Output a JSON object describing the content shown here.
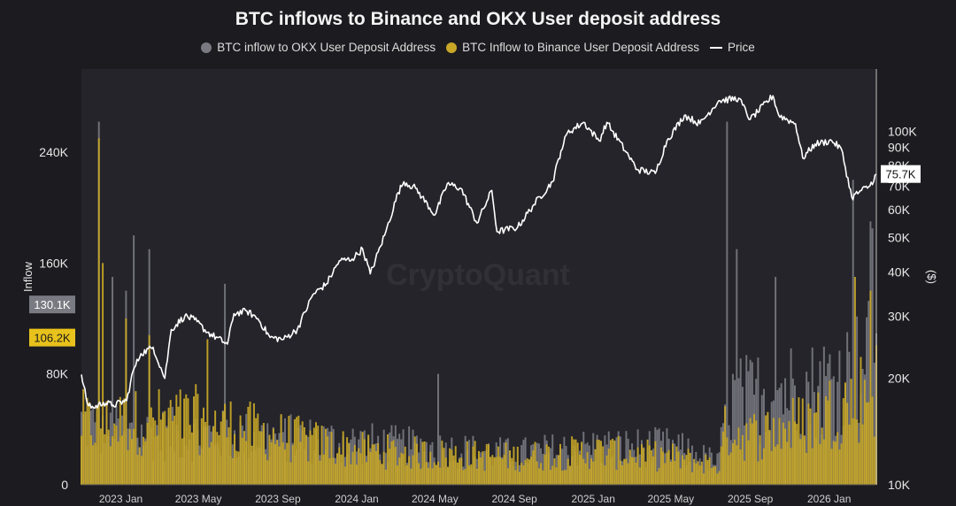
{
  "chart_data": {
    "type": "bar",
    "title": "BTC inflows to Binance and OKX User deposit address",
    "watermark": "CryptoQuant",
    "legend": [
      {
        "name": "BTC inflow to OKX User Deposit Address",
        "color": "#7a7a82",
        "kind": "dot"
      },
      {
        "name": "BTC Inflow to Binance User Deposit Address",
        "color": "#c9a827",
        "kind": "dot"
      },
      {
        "name": "Price",
        "color": "#ffffff",
        "kind": "line"
      }
    ],
    "x_ticks": [
      "2023 Jan",
      "2023 May",
      "2023 Sep",
      "2024 Jan",
      "2024 May",
      "2024 Sep",
      "2025 Jan",
      "2025 May",
      "2025 Sep",
      "2026 Jan"
    ],
    "x_range": [
      "2022-11-01",
      "2026-03-15"
    ],
    "ylabel": "Inflow",
    "ylim": [
      0,
      300000
    ],
    "y_ticks": [
      {
        "v": 0,
        "t": "0"
      },
      {
        "v": 80000,
        "t": "80K"
      },
      {
        "v": 160000,
        "t": "160K"
      },
      {
        "v": 240000,
        "t": "240K"
      }
    ],
    "y2label": "($)",
    "y2_scale": "log",
    "y2lim": [
      10000,
      150000
    ],
    "y2_ticks": [
      {
        "v": 10000,
        "t": "10K"
      },
      {
        "v": 20000,
        "t": "20K"
      },
      {
        "v": 30000,
        "t": "30K"
      },
      {
        "v": 40000,
        "t": "40K"
      },
      {
        "v": 50000,
        "t": "50K"
      },
      {
        "v": 60000,
        "t": "60K"
      },
      {
        "v": 70000,
        "t": "70K"
      },
      {
        "v": 80000,
        "t": "80K"
      },
      {
        "v": 90000,
        "t": "90K"
      },
      {
        "v": 100000,
        "t": "100K"
      }
    ],
    "badges": {
      "okx_last": {
        "text": "130.1K",
        "value": 130100,
        "color": "#7a7a82"
      },
      "binance_last": {
        "text": "106.2K",
        "value": 106200,
        "color": "#e8c21c"
      },
      "price_last": {
        "text": "75.7K",
        "value": 75700,
        "color": "#ffffff"
      }
    },
    "series": [
      {
        "name": "Price",
        "axis": "right",
        "points": [
          [
            "2022-11-01",
            20500
          ],
          [
            "2022-11-10",
            17000
          ],
          [
            "2022-11-20",
            16500
          ],
          [
            "2022-12-05",
            17100
          ],
          [
            "2022-12-20",
            16800
          ],
          [
            "2023-01-10",
            17300
          ],
          [
            "2023-01-20",
            21000
          ],
          [
            "2023-02-01",
            23500
          ],
          [
            "2023-02-20",
            24500
          ],
          [
            "2023-03-10",
            20000
          ],
          [
            "2023-03-20",
            27500
          ],
          [
            "2023-04-10",
            30000
          ],
          [
            "2023-04-25",
            29300
          ],
          [
            "2023-05-15",
            27000
          ],
          [
            "2023-06-15",
            25000
          ],
          [
            "2023-06-25",
            30500
          ],
          [
            "2023-07-15",
            31000
          ],
          [
            "2023-08-01",
            29500
          ],
          [
            "2023-08-20",
            26100
          ],
          [
            "2023-09-10",
            25800
          ],
          [
            "2023-10-01",
            27500
          ],
          [
            "2023-10-25",
            34500
          ],
          [
            "2023-11-15",
            37000
          ],
          [
            "2023-12-05",
            43000
          ],
          [
            "2023-12-25",
            43500
          ],
          [
            "2024-01-10",
            46500
          ],
          [
            "2024-01-22",
            39500
          ],
          [
            "2024-02-15",
            52000
          ],
          [
            "2024-03-05",
            67000
          ],
          [
            "2024-03-14",
            72000
          ],
          [
            "2024-04-01",
            69000
          ],
          [
            "2024-05-01",
            58000
          ],
          [
            "2024-05-20",
            71000
          ],
          [
            "2024-06-10",
            69000
          ],
          [
            "2024-07-05",
            55000
          ],
          [
            "2024-07-28",
            68000
          ],
          [
            "2024-08-05",
            52000
          ],
          [
            "2024-09-06",
            53500
          ],
          [
            "2024-10-01",
            62000
          ],
          [
            "2024-10-30",
            72000
          ],
          [
            "2024-11-12",
            88000
          ],
          [
            "2024-11-22",
            99000
          ],
          [
            "2024-12-17",
            106000
          ],
          [
            "2025-01-10",
            94000
          ],
          [
            "2025-01-22",
            106000
          ],
          [
            "2025-02-25",
            85000
          ],
          [
            "2025-03-10",
            78000
          ],
          [
            "2025-04-07",
            76000
          ],
          [
            "2025-04-25",
            94000
          ],
          [
            "2025-05-22",
            111000
          ],
          [
            "2025-06-15",
            105000
          ],
          [
            "2025-07-14",
            122000
          ],
          [
            "2025-08-14",
            124000
          ],
          [
            "2025-09-01",
            108000
          ],
          [
            "2025-10-06",
            126000
          ],
          [
            "2025-10-15",
            111000
          ],
          [
            "2025-11-10",
            105000
          ],
          [
            "2025-11-21",
            84000
          ],
          [
            "2025-12-10",
            92000
          ],
          [
            "2026-01-05",
            94000
          ],
          [
            "2026-01-20",
            89000
          ],
          [
            "2026-02-05",
            65000
          ],
          [
            "2026-02-20",
            68000
          ],
          [
            "2026-03-05",
            70000
          ],
          [
            "2026-03-15",
            75700
          ]
        ]
      },
      {
        "name": "BTC inflow to OKX User Deposit Address",
        "axis": "left",
        "profile": [
          [
            "2022-11-01",
            45000
          ],
          [
            "2022-12-01",
            40000
          ],
          [
            "2023-01-01",
            37000
          ],
          [
            "2023-05-01",
            36000
          ],
          [
            "2023-09-01",
            34000
          ],
          [
            "2024-01-01",
            30000
          ],
          [
            "2024-05-01",
            26000
          ],
          [
            "2024-09-01",
            22000
          ],
          [
            "2025-01-01",
            27000
          ],
          [
            "2025-05-01",
            27000
          ],
          [
            "2025-07-15",
            16000
          ],
          [
            "2025-07-25",
            60000
          ],
          [
            "2025-09-01",
            62000
          ],
          [
            "2025-10-15",
            70000
          ],
          [
            "2025-12-01",
            68000
          ],
          [
            "2026-02-01",
            80000
          ],
          [
            "2026-03-15",
            92000
          ]
        ],
        "spikes": [
          [
            "2022-11-28",
            262000
          ],
          [
            "2022-12-20",
            150000
          ],
          [
            "2023-01-10",
            140000
          ],
          [
            "2023-01-22",
            180000
          ],
          [
            "2023-02-15",
            170000
          ],
          [
            "2023-06-10",
            145000
          ],
          [
            "2024-05-05",
            80000
          ],
          [
            "2025-07-28",
            262000
          ],
          [
            "2025-08-10",
            170000
          ],
          [
            "2025-10-10",
            150000
          ],
          [
            "2026-02-06",
            220000
          ],
          [
            "2026-03-05",
            190000
          ],
          [
            "2026-03-10",
            185000
          ]
        ]
      },
      {
        "name": "BTC Inflow to Binance User Deposit Address",
        "axis": "left",
        "profile": [
          [
            "2022-11-01",
            45000
          ],
          [
            "2022-12-01",
            42000
          ],
          [
            "2023-01-01",
            45000
          ],
          [
            "2023-05-01",
            47000
          ],
          [
            "2023-09-01",
            35000
          ],
          [
            "2024-01-01",
            25000
          ],
          [
            "2024-05-01",
            22000
          ],
          [
            "2024-09-01",
            20000
          ],
          [
            "2025-01-01",
            24000
          ],
          [
            "2025-05-01",
            20000
          ],
          [
            "2025-07-15",
            14000
          ],
          [
            "2025-07-25",
            40000
          ],
          [
            "2025-09-01",
            35000
          ],
          [
            "2025-10-15",
            40000
          ],
          [
            "2025-12-01",
            45000
          ],
          [
            "2026-02-01",
            60000
          ],
          [
            "2026-03-15",
            70000
          ]
        ],
        "spikes": [
          [
            "2022-11-28",
            250000
          ],
          [
            "2022-12-05",
            160000
          ],
          [
            "2023-01-10",
            120000
          ],
          [
            "2023-02-15",
            108000
          ],
          [
            "2023-05-15",
            105000
          ],
          [
            "2026-02-10",
            150000
          ],
          [
            "2026-03-05",
            140000
          ]
        ]
      }
    ]
  }
}
